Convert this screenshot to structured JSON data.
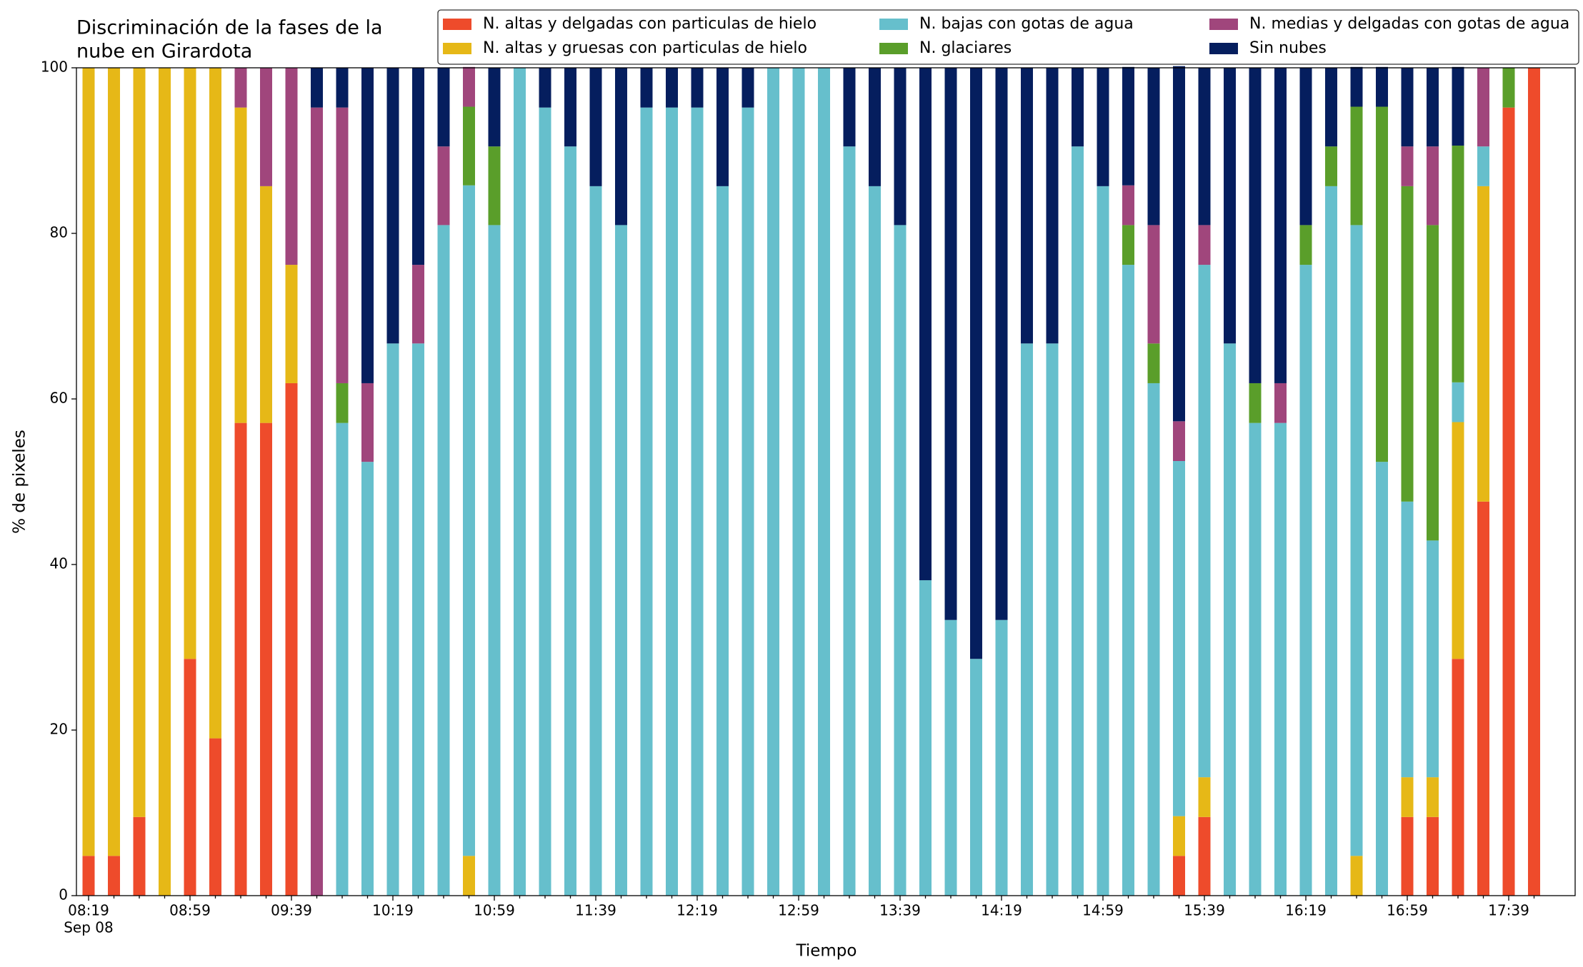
{
  "chart_data": {
    "type": "stacked_bar",
    "title": [
      "Discriminación de la fases de la",
      "nube en Girardota"
    ],
    "x_label": "Tiempo",
    "y_label": "% de pixeles",
    "date_label": "Sep 08",
    "categories": [
      "08:19",
      null,
      null,
      null,
      "08:59",
      null,
      null,
      null,
      "09:39",
      null,
      null,
      null,
      "10:19",
      null,
      null,
      null,
      "10:59",
      null,
      null,
      null,
      "11:39",
      null,
      null,
      null,
      "12:19",
      null,
      null,
      null,
      "12:59",
      null,
      null,
      null,
      "13:39",
      null,
      null,
      null,
      "14:19",
      null,
      null,
      null,
      "14:59",
      null,
      null,
      null,
      "15:39",
      null,
      null,
      null,
      "16:19",
      null,
      null,
      null,
      "16:59",
      null,
      null,
      null,
      "17:39",
      null
    ],
    "ylim": [
      0,
      100
    ],
    "yticks": [
      0,
      20,
      40,
      60,
      80,
      100
    ],
    "grid": false,
    "legend": "upper right",
    "series": [
      {
        "name": "N. altas y delgadas con particulas de hielo",
        "color": "#ee4b2b",
        "values": [
          4.8,
          4.8,
          9.5,
          0,
          28.6,
          19,
          57.1,
          57.1,
          61.9,
          0,
          0,
          0,
          0,
          0,
          0,
          0,
          0,
          0,
          0,
          0,
          0,
          0,
          0,
          0,
          0,
          0,
          0,
          0,
          0,
          0,
          0,
          0,
          0,
          0,
          0,
          0,
          0,
          0,
          0,
          0,
          0,
          0,
          0,
          4.8,
          9.5,
          0,
          0,
          0,
          0,
          0,
          0,
          0,
          9.5,
          9.5,
          28.6,
          47.6,
          95.2,
          100
        ]
      },
      {
        "name": "N. altas y gruesas con particulas de hielo",
        "color": "#e6b817",
        "values": [
          95.2,
          95.2,
          90.5,
          100,
          71.4,
          81,
          38.1,
          28.6,
          14.3,
          0,
          0,
          0,
          0,
          0,
          0,
          4.8,
          0,
          0,
          0,
          0,
          0,
          0,
          0,
          0,
          0,
          0,
          0,
          0,
          0,
          0,
          0,
          0,
          0,
          0,
          0,
          0,
          0,
          0,
          0,
          0,
          0,
          0,
          0,
          4.8,
          4.8,
          0,
          0,
          0,
          0,
          0,
          4.8,
          0,
          4.8,
          4.8,
          28.6,
          38.1,
          0,
          0
        ]
      },
      {
        "name": "N. bajas con gotas de agua",
        "color": "#66bfcc",
        "values": [
          0,
          0,
          0,
          0,
          0,
          0,
          0,
          0,
          0,
          0,
          57.1,
          52.4,
          66.7,
          66.7,
          81,
          81,
          81,
          100,
          95.2,
          90.5,
          85.7,
          81,
          95.2,
          95.2,
          95.2,
          85.7,
          95.2,
          100,
          100,
          100,
          90.5,
          85.7,
          81,
          38.1,
          33.3,
          28.6,
          33.3,
          66.7,
          66.7,
          90.5,
          85.7,
          76.2,
          61.9,
          42.9,
          61.9,
          66.7,
          57.1,
          57.1,
          76.2,
          85.7,
          76.2,
          52.4,
          33.3,
          28.6,
          4.8,
          4.8,
          0,
          0
        ]
      },
      {
        "name": "N. glaciares",
        "color": "#5a9e2a",
        "values": [
          0,
          0,
          0,
          0,
          0,
          0,
          0,
          0,
          0,
          0,
          4.8,
          0,
          0,
          0,
          0,
          9.5,
          9.5,
          0,
          0,
          0,
          0,
          0,
          0,
          0,
          0,
          0,
          0,
          0,
          0,
          0,
          0,
          0,
          0,
          0,
          0,
          0,
          0,
          0,
          0,
          0,
          0,
          4.8,
          4.8,
          0,
          0,
          0,
          4.8,
          0,
          4.8,
          4.8,
          14.3,
          42.9,
          38.1,
          38.1,
          28.6,
          0,
          4.8,
          0
        ]
      },
      {
        "name": "N. medias y delgadas con gotas de agua",
        "color": "#a0467c",
        "values": [
          0,
          0,
          0,
          0,
          0,
          0,
          4.8,
          14.3,
          23.8,
          95.2,
          33.3,
          9.5,
          0,
          9.5,
          9.5,
          4.8,
          0,
          0,
          0,
          0,
          0,
          0,
          0,
          0,
          0,
          0,
          0,
          0,
          0,
          0,
          0,
          0,
          0,
          0,
          0,
          0,
          0,
          0,
          0,
          0,
          0,
          4.8,
          14.3,
          4.8,
          4.8,
          0,
          0,
          4.8,
          0,
          0,
          0,
          0,
          4.8,
          9.5,
          0,
          9.5,
          0,
          0
        ]
      },
      {
        "name": "Sin nubes",
        "color": "#051e5e",
        "values": [
          0,
          0,
          0,
          0,
          0,
          0,
          0,
          0,
          0,
          4.8,
          4.8,
          38.1,
          33.3,
          23.8,
          9.5,
          0,
          9.5,
          0,
          4.8,
          9.5,
          14.3,
          19,
          4.8,
          4.8,
          4.8,
          14.3,
          4.8,
          0,
          0,
          0,
          9.5,
          14.3,
          19,
          61.9,
          66.7,
          71.4,
          66.7,
          33.3,
          33.3,
          9.5,
          14.3,
          14.3,
          19,
          42.9,
          19,
          33.3,
          38.1,
          38.1,
          19,
          9.5,
          4.8,
          4.8,
          9.5,
          9.5,
          9.5,
          0,
          0,
          0
        ]
      }
    ]
  }
}
